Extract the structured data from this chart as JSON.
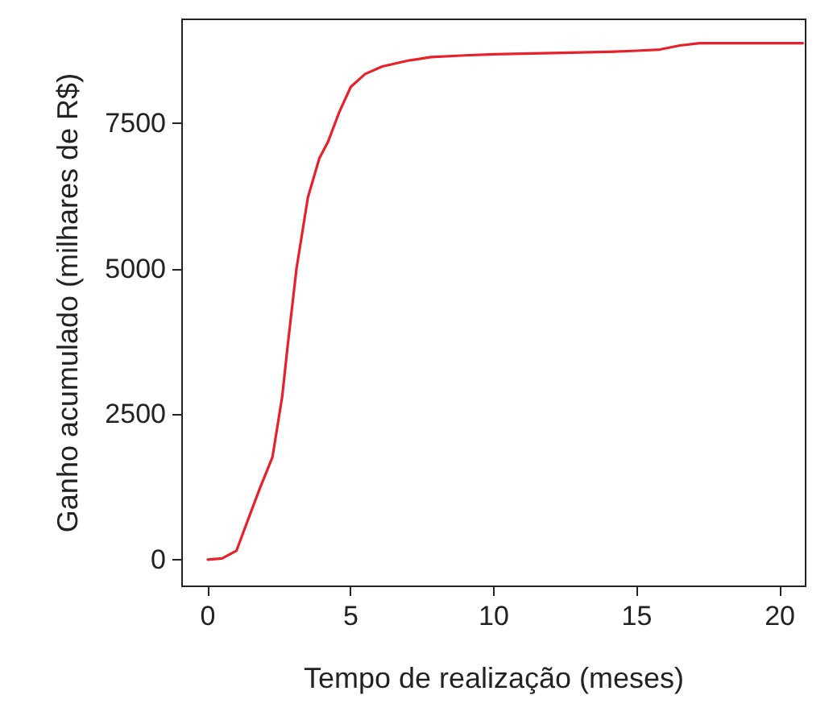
{
  "chart_data": {
    "type": "line",
    "xlabel": "Tempo de realização (meses)",
    "ylabel": "Ganho acumulado (milhares de R$)",
    "xlim": [
      -0.9,
      20.9
    ],
    "ylim": [
      -460,
      9290
    ],
    "xticks": [
      0,
      5,
      10,
      15,
      20
    ],
    "yticks": [
      0,
      2500,
      5000,
      7500
    ],
    "grid": false,
    "marker": "none",
    "line_style": "solid",
    "series": [
      {
        "color": "#e8202a",
        "x": [
          0,
          0.5,
          1,
          1.44,
          1.8,
          2.26,
          2.6,
          2.8,
          3.1,
          3.5,
          3.9,
          4.2,
          4.6,
          5,
          5.5,
          6.1,
          7,
          7.8,
          9,
          10,
          12,
          14,
          15,
          15.8,
          16.5,
          17.2,
          18,
          19,
          20,
          20.8
        ],
        "values": [
          0,
          20,
          150,
          730,
          1200,
          1760,
          2800,
          3710,
          5000,
          6230,
          6900,
          7180,
          7700,
          8130,
          8350,
          8480,
          8580,
          8640,
          8670,
          8690,
          8710,
          8730,
          8750,
          8770,
          8840,
          8880,
          8880,
          8880,
          8880,
          8880
        ]
      }
    ]
  }
}
